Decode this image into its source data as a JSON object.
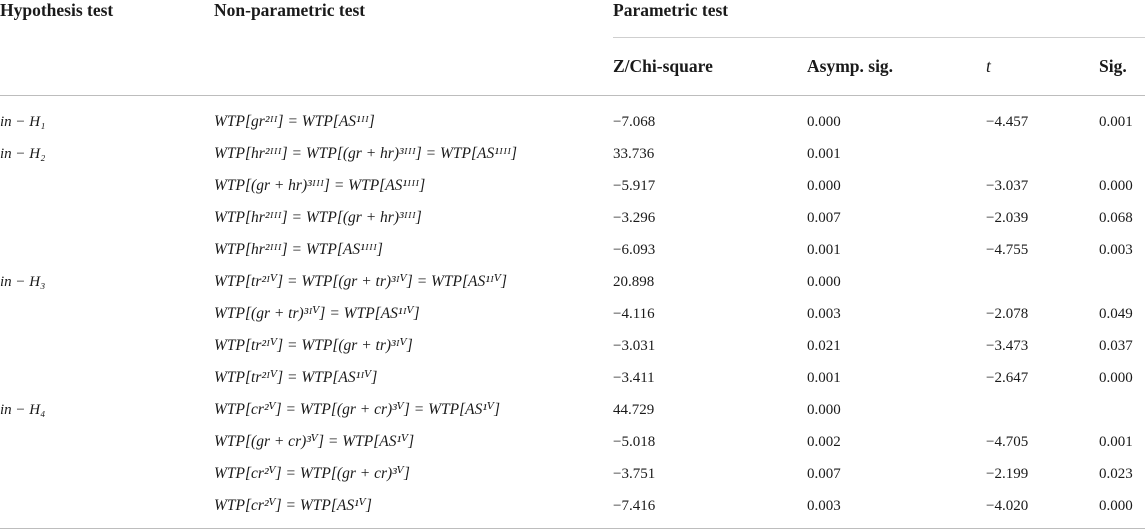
{
  "headers": {
    "hypothesis": "Hypothesis test",
    "nonparametric": "Non-parametric test",
    "parametric": "Parametric test",
    "z": "Z/Chi-square",
    "asymp": "Asymp. sig.",
    "t": "t",
    "sig": "Sig."
  },
  "rows": [
    {
      "hyp": "in − H₁",
      "eq": "WTP[gr²ᴵᴵ] = WTP[AS¹ᴵᴵ]",
      "z": "−7.068",
      "a": "0.000",
      "t": "−4.457",
      "s": "0.001"
    },
    {
      "hyp": "in − H₂",
      "eq": "WTP[hr²ᴵᴵᴵ] = WTP[(gr + hr)³ᴵᴵᴵ] = WTP[AS¹ᴵᴵᴵ]",
      "z": "33.736",
      "a": "0.001",
      "t": "",
      "s": ""
    },
    {
      "hyp": "",
      "eq": "WTP[(gr + hr)³ᴵᴵᴵ] = WTP[AS¹ᴵᴵᴵ]",
      "z": "−5.917",
      "a": "0.000",
      "t": "−3.037",
      "s": "0.000"
    },
    {
      "hyp": "",
      "eq": "WTP[hr²ᴵᴵᴵ] = WTP[(gr + hr)³ᴵᴵᴵ]",
      "z": "−3.296",
      "a": "0.007",
      "t": "−2.039",
      "s": "0.068"
    },
    {
      "hyp": "",
      "eq": "WTP[hr²ᴵᴵᴵ] = WTP[AS¹ᴵᴵᴵ]",
      "z": "−6.093",
      "a": "0.001",
      "t": "−4.755",
      "s": "0.003"
    },
    {
      "hyp": "in − H₃",
      "eq": "WTP[tr²ᴵⱽ] = WTP[(gr + tr)³ᴵⱽ] = WTP[AS¹ᴵⱽ]",
      "z": "20.898",
      "a": "0.000",
      "t": "",
      "s": ""
    },
    {
      "hyp": "",
      "eq": "WTP[(gr + tr)³ᴵⱽ] = WTP[AS¹ᴵⱽ]",
      "z": "−4.116",
      "a": "0.003",
      "t": "−2.078",
      "s": "0.049"
    },
    {
      "hyp": "",
      "eq": "WTP[tr²ᴵⱽ] = WTP[(gr + tr)³ᴵⱽ]",
      "z": "−3.031",
      "a": "0.021",
      "t": "−3.473",
      "s": "0.037"
    },
    {
      "hyp": "",
      "eq": "WTP[tr²ᴵⱽ] = WTP[AS¹ᴵⱽ]",
      "z": "−3.411",
      "a": "0.001",
      "t": "−2.647",
      "s": "0.000"
    },
    {
      "hyp": "in − H₄",
      "eq": "WTP[cr²ⱽ] = WTP[(gr + cr)³ⱽ] = WTP[AS¹ⱽ]",
      "z": "44.729",
      "a": "0.000",
      "t": "",
      "s": ""
    },
    {
      "hyp": "",
      "eq": "WTP[(gr + cr)³ⱽ] = WTP[AS¹ⱽ]",
      "z": "−5.018",
      "a": "0.002",
      "t": "−4.705",
      "s": "0.001"
    },
    {
      "hyp": "",
      "eq": "WTP[cr²ⱽ] = WTP[(gr + cr)³ⱽ]",
      "z": "−3.751",
      "a": "0.007",
      "t": "−2.199",
      "s": "0.023"
    },
    {
      "hyp": "",
      "eq": "WTP[cr²ⱽ] = WTP[AS¹ⱽ]",
      "z": "−7.416",
      "a": "0.003",
      "t": "−4.020",
      "s": "0.000"
    }
  ]
}
